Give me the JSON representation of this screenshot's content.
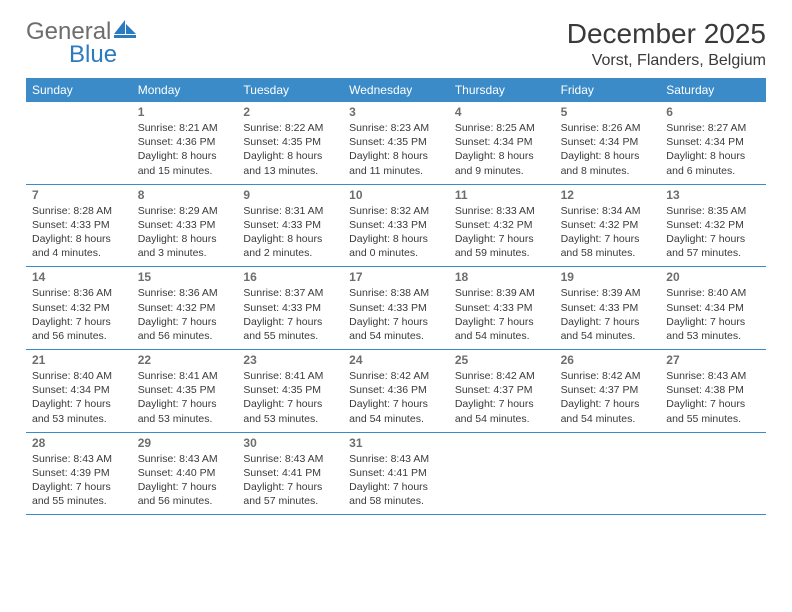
{
  "logo": {
    "text_gray": "General",
    "text_blue": "Blue",
    "icon_color": "#2a7bbf"
  },
  "title": "December 2025",
  "location": "Vorst, Flanders, Belgium",
  "colors": {
    "header_bg": "#3b8bc9",
    "border": "#3b8bc9",
    "day_number": "#6d6d6d",
    "text": "#3a3a3a"
  },
  "day_headers": [
    "Sunday",
    "Monday",
    "Tuesday",
    "Wednesday",
    "Thursday",
    "Friday",
    "Saturday"
  ],
  "weeks": [
    [
      {
        "day": ""
      },
      {
        "day": "1",
        "sunrise": "Sunrise: 8:21 AM",
        "sunset": "Sunset: 4:36 PM",
        "daylight1": "Daylight: 8 hours",
        "daylight2": "and 15 minutes."
      },
      {
        "day": "2",
        "sunrise": "Sunrise: 8:22 AM",
        "sunset": "Sunset: 4:35 PM",
        "daylight1": "Daylight: 8 hours",
        "daylight2": "and 13 minutes."
      },
      {
        "day": "3",
        "sunrise": "Sunrise: 8:23 AM",
        "sunset": "Sunset: 4:35 PM",
        "daylight1": "Daylight: 8 hours",
        "daylight2": "and 11 minutes."
      },
      {
        "day": "4",
        "sunrise": "Sunrise: 8:25 AM",
        "sunset": "Sunset: 4:34 PM",
        "daylight1": "Daylight: 8 hours",
        "daylight2": "and 9 minutes."
      },
      {
        "day": "5",
        "sunrise": "Sunrise: 8:26 AM",
        "sunset": "Sunset: 4:34 PM",
        "daylight1": "Daylight: 8 hours",
        "daylight2": "and 8 minutes."
      },
      {
        "day": "6",
        "sunrise": "Sunrise: 8:27 AM",
        "sunset": "Sunset: 4:34 PM",
        "daylight1": "Daylight: 8 hours",
        "daylight2": "and 6 minutes."
      }
    ],
    [
      {
        "day": "7",
        "sunrise": "Sunrise: 8:28 AM",
        "sunset": "Sunset: 4:33 PM",
        "daylight1": "Daylight: 8 hours",
        "daylight2": "and 4 minutes."
      },
      {
        "day": "8",
        "sunrise": "Sunrise: 8:29 AM",
        "sunset": "Sunset: 4:33 PM",
        "daylight1": "Daylight: 8 hours",
        "daylight2": "and 3 minutes."
      },
      {
        "day": "9",
        "sunrise": "Sunrise: 8:31 AM",
        "sunset": "Sunset: 4:33 PM",
        "daylight1": "Daylight: 8 hours",
        "daylight2": "and 2 minutes."
      },
      {
        "day": "10",
        "sunrise": "Sunrise: 8:32 AM",
        "sunset": "Sunset: 4:33 PM",
        "daylight1": "Daylight: 8 hours",
        "daylight2": "and 0 minutes."
      },
      {
        "day": "11",
        "sunrise": "Sunrise: 8:33 AM",
        "sunset": "Sunset: 4:32 PM",
        "daylight1": "Daylight: 7 hours",
        "daylight2": "and 59 minutes."
      },
      {
        "day": "12",
        "sunrise": "Sunrise: 8:34 AM",
        "sunset": "Sunset: 4:32 PM",
        "daylight1": "Daylight: 7 hours",
        "daylight2": "and 58 minutes."
      },
      {
        "day": "13",
        "sunrise": "Sunrise: 8:35 AM",
        "sunset": "Sunset: 4:32 PM",
        "daylight1": "Daylight: 7 hours",
        "daylight2": "and 57 minutes."
      }
    ],
    [
      {
        "day": "14",
        "sunrise": "Sunrise: 8:36 AM",
        "sunset": "Sunset: 4:32 PM",
        "daylight1": "Daylight: 7 hours",
        "daylight2": "and 56 minutes."
      },
      {
        "day": "15",
        "sunrise": "Sunrise: 8:36 AM",
        "sunset": "Sunset: 4:32 PM",
        "daylight1": "Daylight: 7 hours",
        "daylight2": "and 56 minutes."
      },
      {
        "day": "16",
        "sunrise": "Sunrise: 8:37 AM",
        "sunset": "Sunset: 4:33 PM",
        "daylight1": "Daylight: 7 hours",
        "daylight2": "and 55 minutes."
      },
      {
        "day": "17",
        "sunrise": "Sunrise: 8:38 AM",
        "sunset": "Sunset: 4:33 PM",
        "daylight1": "Daylight: 7 hours",
        "daylight2": "and 54 minutes."
      },
      {
        "day": "18",
        "sunrise": "Sunrise: 8:39 AM",
        "sunset": "Sunset: 4:33 PM",
        "daylight1": "Daylight: 7 hours",
        "daylight2": "and 54 minutes."
      },
      {
        "day": "19",
        "sunrise": "Sunrise: 8:39 AM",
        "sunset": "Sunset: 4:33 PM",
        "daylight1": "Daylight: 7 hours",
        "daylight2": "and 54 minutes."
      },
      {
        "day": "20",
        "sunrise": "Sunrise: 8:40 AM",
        "sunset": "Sunset: 4:34 PM",
        "daylight1": "Daylight: 7 hours",
        "daylight2": "and 53 minutes."
      }
    ],
    [
      {
        "day": "21",
        "sunrise": "Sunrise: 8:40 AM",
        "sunset": "Sunset: 4:34 PM",
        "daylight1": "Daylight: 7 hours",
        "daylight2": "and 53 minutes."
      },
      {
        "day": "22",
        "sunrise": "Sunrise: 8:41 AM",
        "sunset": "Sunset: 4:35 PM",
        "daylight1": "Daylight: 7 hours",
        "daylight2": "and 53 minutes."
      },
      {
        "day": "23",
        "sunrise": "Sunrise: 8:41 AM",
        "sunset": "Sunset: 4:35 PM",
        "daylight1": "Daylight: 7 hours",
        "daylight2": "and 53 minutes."
      },
      {
        "day": "24",
        "sunrise": "Sunrise: 8:42 AM",
        "sunset": "Sunset: 4:36 PM",
        "daylight1": "Daylight: 7 hours",
        "daylight2": "and 54 minutes."
      },
      {
        "day": "25",
        "sunrise": "Sunrise: 8:42 AM",
        "sunset": "Sunset: 4:37 PM",
        "daylight1": "Daylight: 7 hours",
        "daylight2": "and 54 minutes."
      },
      {
        "day": "26",
        "sunrise": "Sunrise: 8:42 AM",
        "sunset": "Sunset: 4:37 PM",
        "daylight1": "Daylight: 7 hours",
        "daylight2": "and 54 minutes."
      },
      {
        "day": "27",
        "sunrise": "Sunrise: 8:43 AM",
        "sunset": "Sunset: 4:38 PM",
        "daylight1": "Daylight: 7 hours",
        "daylight2": "and 55 minutes."
      }
    ],
    [
      {
        "day": "28",
        "sunrise": "Sunrise: 8:43 AM",
        "sunset": "Sunset: 4:39 PM",
        "daylight1": "Daylight: 7 hours",
        "daylight2": "and 55 minutes."
      },
      {
        "day": "29",
        "sunrise": "Sunrise: 8:43 AM",
        "sunset": "Sunset: 4:40 PM",
        "daylight1": "Daylight: 7 hours",
        "daylight2": "and 56 minutes."
      },
      {
        "day": "30",
        "sunrise": "Sunrise: 8:43 AM",
        "sunset": "Sunset: 4:41 PM",
        "daylight1": "Daylight: 7 hours",
        "daylight2": "and 57 minutes."
      },
      {
        "day": "31",
        "sunrise": "Sunrise: 8:43 AM",
        "sunset": "Sunset: 4:41 PM",
        "daylight1": "Daylight: 7 hours",
        "daylight2": "and 58 minutes."
      },
      {
        "day": ""
      },
      {
        "day": ""
      },
      {
        "day": ""
      }
    ]
  ]
}
